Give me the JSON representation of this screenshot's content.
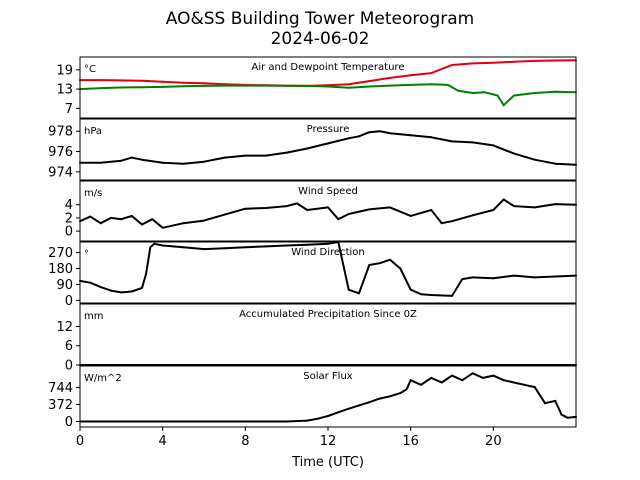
{
  "header": {
    "title_line1": "AO&SS Building Tower Meteorogram",
    "title_line2": "2024-06-02"
  },
  "colors": {
    "air_temperature": "#e3000f",
    "dewpoint": "#008000",
    "default_series": "#000000"
  },
  "chart_data": {
    "type": "line",
    "xlabel": "Time (UTC)",
    "xlim": [
      0,
      24
    ],
    "xticks": [
      0,
      4,
      8,
      12,
      16,
      20
    ],
    "grid": false,
    "panels": [
      {
        "title": "Air and Dewpoint Temperature",
        "unit": "°C",
        "ylim": [
          4,
          23
        ],
        "yticks": [
          7,
          13,
          19
        ],
        "series": [
          {
            "color": "#e3000f",
            "x": [
              0,
              1,
              2,
              3,
              4,
              5,
              6,
              7,
              8,
              9,
              10,
              11,
              12,
              13,
              14,
              15,
              16,
              17,
              18,
              19,
              20,
              21,
              22,
              23,
              24
            ],
            "y": [
              15.8,
              15.8,
              15.7,
              15.6,
              15.3,
              15.0,
              14.8,
              14.5,
              14.3,
              14.2,
              14.1,
              14.0,
              14.2,
              14.5,
              15.5,
              16.5,
              17.3,
              18.0,
              20.5,
              21.0,
              21.2,
              21.5,
              21.8,
              21.9,
              22.0
            ]
          },
          {
            "color": "#008000",
            "x": [
              0,
              1,
              2,
              3,
              4,
              5,
              6,
              7,
              8,
              9,
              10,
              11,
              12,
              13,
              14,
              15,
              16,
              17,
              17.8,
              18.3,
              19,
              19.6,
              20.2,
              20.5,
              21,
              22,
              23,
              24
            ],
            "y": [
              13.0,
              13.3,
              13.5,
              13.6,
              13.7,
              13.9,
              14.0,
              14.1,
              14.1,
              14.1,
              14.0,
              14.0,
              13.8,
              13.4,
              13.8,
              14.1,
              14.3,
              14.5,
              14.3,
              12.5,
              11.8,
              12.0,
              11.0,
              8.0,
              11.0,
              11.8,
              12.2,
              12.0
            ]
          }
        ]
      },
      {
        "title": "Pressure",
        "unit": "hPa",
        "ylim": [
          973.2,
          979.2
        ],
        "yticks": [
          974,
          976,
          978
        ],
        "series": [
          {
            "color": "#000000",
            "x": [
              0,
              1,
              2,
              2.5,
              3,
              4,
              5,
              6,
              7,
              8,
              9,
              10,
              11,
              12,
              13,
              13.5,
              14,
              14.5,
              15,
              16,
              17,
              18,
              19,
              20,
              21,
              22,
              23,
              24
            ],
            "y": [
              974.9,
              974.9,
              975.1,
              975.4,
              975.2,
              974.9,
              974.8,
              975.0,
              975.4,
              975.6,
              975.6,
              975.9,
              976.3,
              976.8,
              977.3,
              977.5,
              977.9,
              978.0,
              977.8,
              977.6,
              977.4,
              977.0,
              976.9,
              976.6,
              975.8,
              975.2,
              974.8,
              974.7
            ]
          }
        ]
      },
      {
        "title": "Wind Speed",
        "unit": "m/s",
        "ylim": [
          -1.5,
          7.6
        ],
        "yticks": [
          0,
          2,
          4
        ],
        "series": [
          {
            "color": "#000000",
            "x": [
              0,
              0.5,
              1,
              1.5,
              2,
              2.5,
              3,
              3.5,
              4,
              5,
              6,
              7,
              8,
              9,
              10,
              10.5,
              11,
              12,
              12.5,
              13,
              14,
              15,
              16,
              17,
              17.5,
              18,
              19,
              20,
              20.5,
              21,
              22,
              23,
              24
            ],
            "y": [
              1.5,
              2.2,
              1.2,
              2.0,
              1.8,
              2.3,
              1.0,
              1.8,
              0.5,
              1.2,
              1.6,
              2.5,
              3.4,
              3.5,
              3.8,
              4.2,
              3.2,
              3.6,
              1.8,
              2.6,
              3.3,
              3.6,
              2.3,
              3.2,
              1.2,
              1.5,
              2.4,
              3.2,
              4.8,
              3.8,
              3.6,
              4.1,
              4.0
            ]
          }
        ]
      },
      {
        "title": "Wind Direction",
        "unit": "°",
        "ylim": [
          -15,
          330
        ],
        "yticks": [
          0,
          90,
          180,
          270
        ],
        "series": [
          {
            "color": "#000000",
            "x": [
              0,
              0.5,
              1,
              1.5,
              2,
              2.5,
              3,
              3.2,
              3.4,
              3.6,
              4,
              5,
              6,
              7,
              8,
              9,
              10,
              11,
              12,
              12.5,
              13,
              13.5,
              14,
              14.5,
              15,
              15.5,
              16,
              16.5,
              17,
              18,
              18.5,
              19,
              20,
              21,
              22,
              23,
              24
            ],
            "y": [
              110,
              100,
              75,
              55,
              45,
              50,
              70,
              150,
              300,
              320,
              310,
              300,
              290,
              295,
              300,
              305,
              310,
              315,
              320,
              330,
              60,
              40,
              200,
              210,
              230,
              180,
              60,
              35,
              30,
              25,
              120,
              130,
              125,
              140,
              130,
              135,
              140
            ]
          }
        ]
      },
      {
        "title": "Accumulated Precipitation Since 0Z",
        "unit": "mm",
        "ylim": [
          0,
          19
        ],
        "yticks": [
          0,
          6,
          12
        ],
        "series": [
          {
            "color": "#000000",
            "x": [
              0,
              24
            ],
            "y": [
              0,
              0
            ]
          }
        ]
      },
      {
        "title": "Solar Flux",
        "unit": "W/m^2",
        "ylim": [
          -120,
          1210
        ],
        "yticks": [
          0,
          372,
          744
        ],
        "series": [
          {
            "color": "#000000",
            "x": [
              0,
              1,
              2,
              4,
              6,
              8,
              10,
              11,
              11.5,
              12,
              12.5,
              13,
              13.5,
              14,
              14.5,
              15,
              15.5,
              15.8,
              16,
              16.5,
              17,
              17.5,
              18,
              18.5,
              19,
              19.5,
              20,
              20.5,
              21,
              21.5,
              22,
              22.5,
              23,
              23.3,
              23.6,
              24
            ],
            "y": [
              0,
              0,
              0,
              0,
              0,
              0,
              0,
              20,
              60,
              120,
              200,
              280,
              350,
              420,
              500,
              550,
              620,
              700,
              900,
              800,
              950,
              850,
              1000,
              900,
              1050,
              950,
              1000,
              900,
              850,
              800,
              750,
              400,
              450,
              150,
              80,
              100
            ]
          }
        ]
      }
    ]
  }
}
